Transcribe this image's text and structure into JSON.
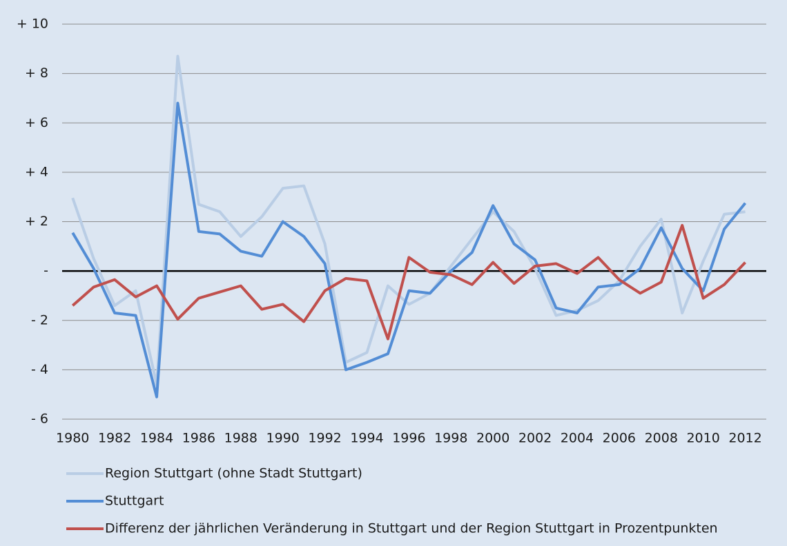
{
  "chart_data": {
    "type": "line",
    "x": [
      1980,
      1981,
      1982,
      1983,
      1984,
      1985,
      1986,
      1987,
      1988,
      1989,
      1990,
      1991,
      1992,
      1993,
      1994,
      1995,
      1996,
      1997,
      1998,
      1999,
      2000,
      2001,
      2002,
      2003,
      2004,
      2005,
      2006,
      2007,
      2008,
      2009,
      2010,
      2011,
      2012
    ],
    "xlim": [
      1979.5,
      2013
    ],
    "xticks": [
      1980,
      1982,
      1984,
      1986,
      1988,
      1990,
      1992,
      1994,
      1996,
      1998,
      2000,
      2002,
      2004,
      2006,
      2008,
      2010,
      2012
    ],
    "ylim": [
      -6,
      10
    ],
    "yticks": [
      {
        "value": 10,
        "label": "+ 10"
      },
      {
        "value": 8,
        "label": "+ 8"
      },
      {
        "value": 6,
        "label": "+ 6"
      },
      {
        "value": 4,
        "label": "+ 4"
      },
      {
        "value": 2,
        "label": "+ 2"
      },
      {
        "value": 0,
        "label": "-"
      },
      {
        "value": -2,
        "label": "- 2"
      },
      {
        "value": -4,
        "label": "- 4"
      },
      {
        "value": -6,
        "label": "- 6"
      }
    ],
    "grid": true,
    "series": [
      {
        "name": "Region Stuttgart (ohne Stadt Stuttgart)",
        "color": "#b9cde5",
        "values": [
          2.96,
          0.5,
          -1.4,
          -0.8,
          -4.6,
          8.7,
          2.7,
          2.4,
          1.4,
          2.2,
          3.35,
          3.45,
          1.1,
          -3.7,
          -3.3,
          -0.6,
          -1.35,
          -0.9,
          0.2,
          1.3,
          2.4,
          1.6,
          0.1,
          -1.8,
          -1.6,
          -1.2,
          -0.4,
          1.0,
          2.1,
          -1.7,
          0.4,
          2.3,
          2.4
        ]
      },
      {
        "name": "Stuttgart",
        "color": "#538dd5",
        "values": [
          1.55,
          0.1,
          -1.7,
          -1.8,
          -5.1,
          6.8,
          1.6,
          1.5,
          0.8,
          0.6,
          2.0,
          1.4,
          0.3,
          -4.0,
          -3.7,
          -3.35,
          -0.8,
          -0.9,
          0.0,
          0.75,
          2.65,
          1.1,
          0.45,
          -1.5,
          -1.7,
          -0.65,
          -0.55,
          0.1,
          1.75,
          0.1,
          -0.8,
          1.7,
          2.75
        ]
      },
      {
        "name": "Differenz der jährlichen Veränderung in Stuttgart und der Region Stuttgart in Prozentpunkten",
        "color": "#c0504d",
        "values": [
          -1.4,
          -0.65,
          -0.35,
          -1.05,
          -0.6,
          -1.95,
          -1.1,
          -0.85,
          -0.6,
          -1.55,
          -1.35,
          -2.05,
          -0.8,
          -0.3,
          -0.4,
          -2.75,
          0.55,
          -0.05,
          -0.15,
          -0.55,
          0.35,
          -0.5,
          0.2,
          0.3,
          -0.1,
          0.55,
          -0.35,
          -0.9,
          -0.45,
          1.85,
          -1.1,
          -0.55,
          0.35
        ]
      }
    ]
  }
}
